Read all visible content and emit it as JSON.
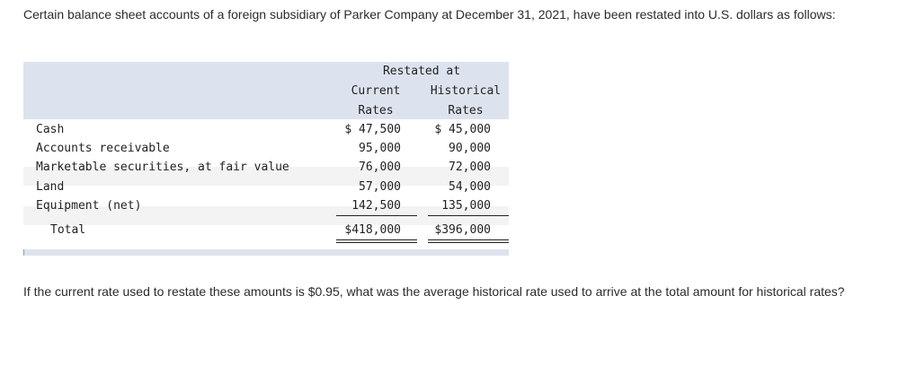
{
  "intro_text": "Certain balance sheet accounts of a foreign subsidiary of Parker Company at December 31, 2021, have been restated into U.S. dollars as follows:",
  "table": {
    "group_header": "Restated at",
    "col_current_line1": "Current",
    "col_current_line2": "Rates",
    "col_historical_line1": "Historical",
    "col_historical_line2": "Rates",
    "rows": [
      {
        "label": "Cash",
        "current": "$ 47,500",
        "historical": "$ 45,000"
      },
      {
        "label": "Accounts receivable",
        "current": "95,000",
        "historical": "90,000"
      },
      {
        "label": "Marketable securities, at fair value",
        "current": "76,000",
        "historical": "72,000"
      },
      {
        "label": "Land",
        "current": "57,000",
        "historical": "54,000"
      },
      {
        "label": "Equipment (net)",
        "current": "142,500",
        "historical": "135,000"
      }
    ],
    "total": {
      "label": "Total",
      "current": "$418,000",
      "historical": "$396,000"
    }
  },
  "question_text": "If the current rate used to restate these amounts is $0.95, what was the average historical rate used to arrive at the total amount for historical rates?"
}
